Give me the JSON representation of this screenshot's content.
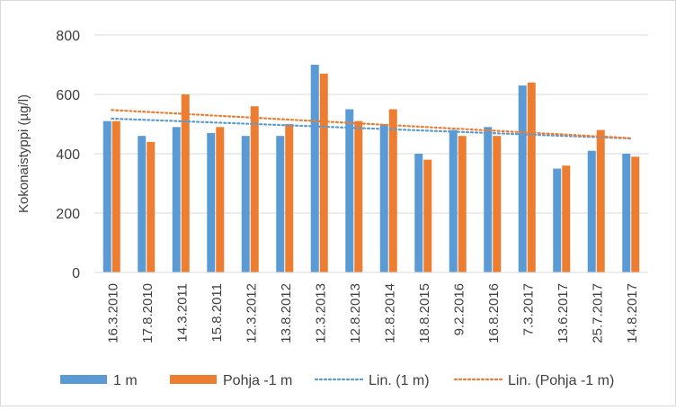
{
  "chart_data": {
    "type": "bar",
    "title": "",
    "xlabel": "",
    "ylabel": "Kokonaistyppi (µg/l)",
    "ylim": [
      0,
      800
    ],
    "yticks": [
      0,
      200,
      400,
      600,
      800
    ],
    "grid": true,
    "legend_position": "bottom",
    "categories": [
      "16.3.2010",
      "17.8.2010",
      "14.3.2011",
      "15.8.2011",
      "12.3.2012",
      "13.8.2012",
      "12.3.2013",
      "12.8.2013",
      "12.8.2014",
      "18.8.2015",
      "9.2.2016",
      "16.8.2016",
      "7.3.2017",
      "13.6.2017",
      "25.7.2017",
      "14.8.2017"
    ],
    "series": [
      {
        "name": "1 m",
        "color": "#5b9bd5",
        "values": [
          510,
          460,
          490,
          470,
          460,
          460,
          700,
          550,
          500,
          400,
          480,
          490,
          630,
          350,
          410,
          400
        ]
      },
      {
        "name": "Pohja -1 m",
        "color": "#ed7d31",
        "values": [
          510,
          440,
          600,
          490,
          560,
          500,
          670,
          510,
          550,
          380,
          460,
          460,
          640,
          360,
          480,
          390
        ]
      }
    ],
    "trendlines": [
      {
        "name": "Lin. (1 m)",
        "color": "#5b9bd5",
        "style": "dotted",
        "series": 0
      },
      {
        "name": "Lin. (Pohja -1 m)",
        "color": "#ed7d31",
        "style": "dotted",
        "series": 1
      }
    ]
  }
}
